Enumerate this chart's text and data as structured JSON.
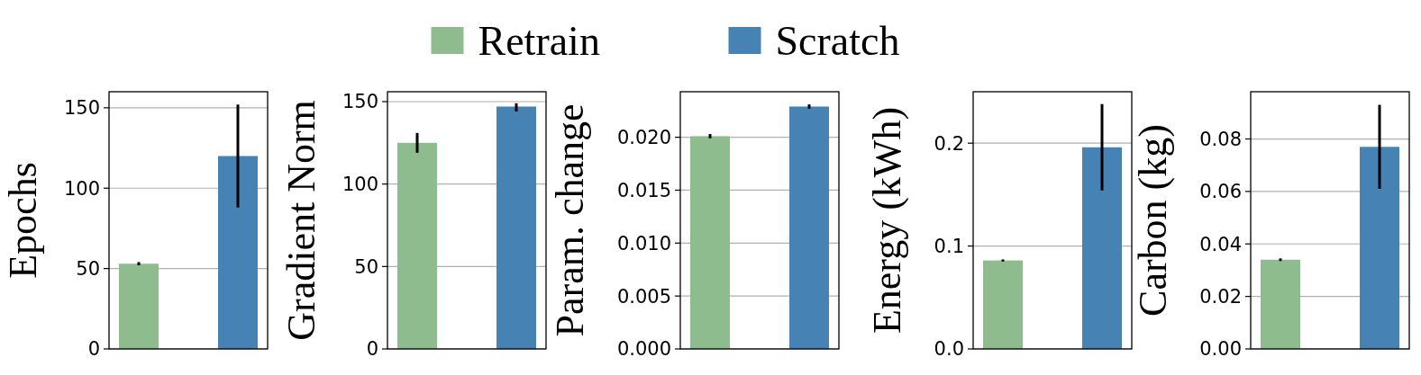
{
  "chart_data": [
    {
      "type": "bar",
      "ylabel": "Epochs",
      "categories": [
        null,
        null
      ],
      "ylim": [
        0,
        160
      ],
      "yticks": [
        0,
        50,
        100,
        150
      ],
      "grid": "y",
      "tick_labels": "y",
      "legend": "top",
      "series": [
        {
          "name": "Retrain",
          "color": "#8fbc8f",
          "values": [
            53,
            null
          ],
          "errors": [
            [
              52,
              54
            ],
            null
          ]
        },
        {
          "name": "Scratch",
          "color": "#4682b4",
          "values": [
            null,
            120
          ],
          "errors": [
            null,
            [
              88,
              152
            ]
          ]
        }
      ]
    },
    {
      "type": "bar",
      "ylabel": "Gradient Norm",
      "categories": [
        null,
        null
      ],
      "ylim": [
        0,
        156
      ],
      "yticks": [
        0,
        50,
        100,
        150
      ],
      "grid": "y",
      "tick_labels": "y",
      "series": [
        {
          "color": "#8fbc8f",
          "values": [
            125,
            null
          ],
          "errors": [
            [
              119,
              131
            ],
            null
          ]
        },
        {
          "color": "#4682b4",
          "values": [
            null,
            147
          ],
          "errors": [
            null,
            [
              144,
              149
            ]
          ]
        }
      ]
    },
    {
      "type": "bar",
      "ylabel": "Param. change",
      "categories": [
        null,
        null
      ],
      "ylim": [
        0,
        0.0243
      ],
      "yticks": [
        {
          "value": 0,
          "label": "0.000"
        },
        {
          "value": 0.005,
          "label": "0.005"
        },
        {
          "value": 0.01,
          "label": "0.010"
        },
        {
          "value": 0.015,
          "label": "0.015"
        },
        {
          "value": 0.02,
          "label": "0.020"
        }
      ],
      "grid": "y",
      "tick_labels": "y",
      "series": [
        {
          "color": "#8fbc8f",
          "values": [
            0.0201,
            null
          ],
          "errors": [
            [
              0.0199,
              0.0203
            ],
            null
          ]
        },
        {
          "color": "#4682b4",
          "values": [
            null,
            0.0229
          ],
          "errors": [
            null,
            [
              0.0227,
              0.0231
            ]
          ]
        }
      ]
    },
    {
      "type": "bar",
      "ylabel": "Energy (kWh)",
      "categories": [
        null,
        null
      ],
      "ylim": [
        0,
        0.25
      ],
      "yticks": [
        {
          "value": 0,
          "label": "0.0"
        },
        {
          "value": 0.1,
          "label": "0.1"
        },
        {
          "value": 0.2,
          "label": "0.2"
        }
      ],
      "grid": "y",
      "tick_labels": "y",
      "series": [
        {
          "color": "#8fbc8f",
          "values": [
            0.086,
            null
          ],
          "errors": [
            [
              0.085,
              0.087
            ],
            null
          ]
        },
        {
          "color": "#4682b4",
          "values": [
            null,
            0.196
          ],
          "errors": [
            null,
            [
              0.154,
              0.238
            ]
          ]
        }
      ]
    },
    {
      "type": "bar",
      "ylabel": "Carbon (kg)",
      "categories": [
        null,
        null
      ],
      "ylim": [
        0,
        0.098
      ],
      "yticks": [
        {
          "value": 0,
          "label": "0.00"
        },
        {
          "value": 0.02,
          "label": "0.02"
        },
        {
          "value": 0.04,
          "label": "0.04"
        },
        {
          "value": 0.06,
          "label": "0.06"
        },
        {
          "value": 0.08,
          "label": "0.08"
        }
      ],
      "grid": "y",
      "tick_labels": "y",
      "series": [
        {
          "color": "#8fbc8f",
          "values": [
            0.034,
            null
          ],
          "errors": [
            [
              0.0335,
              0.0345
            ],
            null
          ]
        },
        {
          "color": "#4682b4",
          "values": [
            null,
            0.077
          ],
          "errors": [
            null,
            [
              0.061,
              0.093
            ]
          ]
        }
      ]
    }
  ]
}
